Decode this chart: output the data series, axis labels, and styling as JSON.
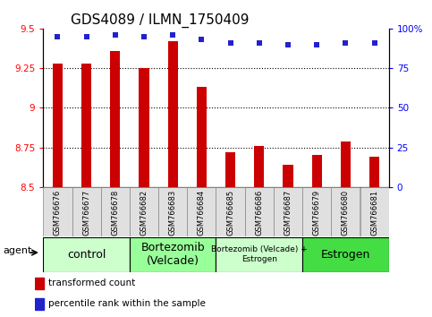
{
  "title": "GDS4089 / ILMN_1750409",
  "samples": [
    "GSM766676",
    "GSM766677",
    "GSM766678",
    "GSM766682",
    "GSM766683",
    "GSM766684",
    "GSM766685",
    "GSM766686",
    "GSM766687",
    "GSM766679",
    "GSM766680",
    "GSM766681"
  ],
  "bar_values": [
    9.28,
    9.28,
    9.36,
    9.25,
    9.42,
    9.13,
    8.72,
    8.76,
    8.64,
    8.7,
    8.79,
    8.69
  ],
  "percentile_values": [
    95,
    95,
    96,
    95,
    96,
    93,
    91,
    91,
    90,
    90,
    91,
    91
  ],
  "ylim_left": [
    8.5,
    9.5
  ],
  "ylim_right": [
    0,
    100
  ],
  "bar_color": "#cc0000",
  "dot_color": "#2222cc",
  "bar_bottom": 8.5,
  "groups": [
    {
      "label": "control",
      "start": 0,
      "end": 3,
      "color": "#ccffcc",
      "fontsize": 9
    },
    {
      "label": "Bortezomib\n(Velcade)",
      "start": 3,
      "end": 6,
      "color": "#99ff99",
      "fontsize": 9
    },
    {
      "label": "Bortezomib (Velcade) +\nEstrogen",
      "start": 6,
      "end": 9,
      "color": "#ccffcc",
      "fontsize": 6.5
    },
    {
      "label": "Estrogen",
      "start": 9,
      "end": 12,
      "color": "#44dd44",
      "fontsize": 9
    }
  ],
  "legend_label_bar": "transformed count",
  "legend_label_dot": "percentile rank within the sample",
  "yticks_left": [
    8.5,
    8.75,
    9.0,
    9.25,
    9.5
  ],
  "ytick_labels_left": [
    "8.5",
    "8.75",
    "9",
    "9.25",
    "9.5"
  ],
  "yticks_right": [
    0,
    25,
    50,
    75,
    100
  ],
  "ytick_labels_right": [
    "0",
    "25",
    "50",
    "75",
    "100%"
  ],
  "grid_lines": [
    8.75,
    9.0,
    9.25
  ],
  "title_fontsize": 11,
  "tick_fontsize": 7.5,
  "xtick_fontsize": 6,
  "bar_width": 0.35
}
